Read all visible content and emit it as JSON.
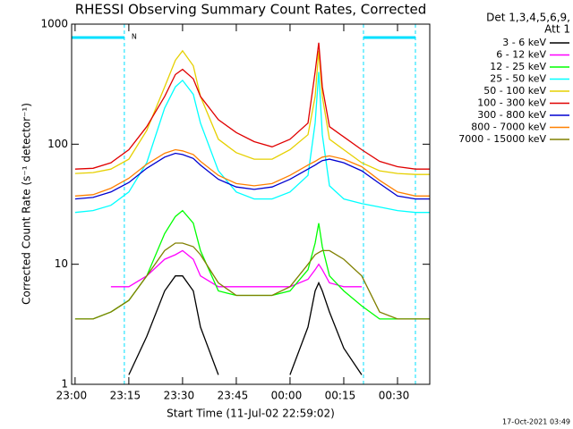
{
  "chart_data": {
    "type": "line",
    "title": "RHESSI Observing Summary Count Rates, Corrected",
    "xlabel": "Start Time (11-Jul-02 22:59:02)",
    "ylabel": "Corrected Count Rate (s⁻¹ detector⁻¹)",
    "legend_title": [
      "Det 1,3,4,5,6,9,",
      "Att 1"
    ],
    "footer": "17-Oct-2021 03:49",
    "night_label": "N",
    "night_intervals": [
      [
        "22:59:02",
        "23:13:45"
      ],
      [
        "00:20:30",
        "00:35:00"
      ]
    ],
    "night_color": "#00e0ff",
    "log_y": true,
    "xlim": [
      "22:59:02",
      "00:39:00"
    ],
    "xticks": [
      "23:00",
      "23:15",
      "23:30",
      "23:45",
      "00:00",
      "00:15",
      "00:30"
    ],
    "ylim": [
      1,
      1000
    ],
    "yticks": [
      1,
      10,
      100,
      1000
    ],
    "x": [
      "23:00",
      "23:05",
      "23:10",
      "23:15",
      "23:20",
      "23:25",
      "23:28",
      "23:30",
      "23:33",
      "23:35",
      "23:40",
      "23:45",
      "23:50",
      "23:55",
      "00:00",
      "00:05",
      "00:07",
      "00:08",
      "00:09",
      "00:11",
      "00:15",
      "00:20",
      "00:25",
      "00:30",
      "00:35",
      "00:39"
    ],
    "series": [
      {
        "name": "3 - 6 keV",
        "color": "#000000",
        "values": [
          null,
          null,
          null,
          1.2,
          2.5,
          6,
          8,
          8,
          6,
          3,
          1.2,
          null,
          null,
          null,
          1.2,
          3,
          6,
          7,
          6,
          4,
          2,
          1.2,
          null,
          null,
          null,
          null
        ]
      },
      {
        "name": "6 - 12 keV",
        "color": "#ff00ff",
        "values": [
          null,
          null,
          6.5,
          6.5,
          8,
          11,
          12,
          13,
          11,
          8,
          6.5,
          6.5,
          6.5,
          6.5,
          6.5,
          7.5,
          9,
          10,
          9,
          7,
          6.5,
          6.5,
          null,
          null,
          null,
          null
        ]
      },
      {
        "name": "12 - 25 keV",
        "color": "#00ff00",
        "values": [
          3.5,
          3.5,
          4,
          5,
          8,
          18,
          25,
          28,
          22,
          13,
          6,
          5.5,
          5.5,
          5.5,
          6,
          9,
          15,
          22,
          14,
          8,
          6,
          4.5,
          3.5,
          3.5,
          3.5,
          3.5
        ]
      },
      {
        "name": "25 - 50 keV",
        "color": "#00ffff",
        "values": [
          27,
          28,
          31,
          40,
          70,
          200,
          300,
          340,
          260,
          150,
          60,
          40,
          35,
          35,
          40,
          55,
          150,
          400,
          120,
          45,
          35,
          32,
          30,
          28,
          27,
          27
        ]
      },
      {
        "name": "50 - 100 keV",
        "color": "#e6d000",
        "values": [
          57,
          58,
          62,
          75,
          130,
          300,
          500,
          600,
          450,
          250,
          110,
          85,
          75,
          75,
          90,
          120,
          250,
          600,
          250,
          110,
          90,
          70,
          60,
          57,
          56,
          56
        ]
      },
      {
        "name": "100 - 300 keV",
        "color": "#e00000",
        "values": [
          62,
          63,
          70,
          90,
          140,
          250,
          380,
          420,
          350,
          250,
          160,
          125,
          105,
          95,
          110,
          150,
          400,
          700,
          300,
          140,
          115,
          90,
          72,
          65,
          62,
          62
        ]
      },
      {
        "name": "300 - 800 keV",
        "color": "#0000d0",
        "values": [
          35,
          36,
          40,
          48,
          63,
          78,
          84,
          82,
          76,
          67,
          51,
          44,
          42,
          44,
          51,
          62,
          67,
          70,
          73,
          75,
          70,
          60,
          47,
          37,
          35,
          35
        ]
      },
      {
        "name": "800 - 7000 keV",
        "color": "#ff8000",
        "values": [
          37,
          38,
          43,
          52,
          68,
          84,
          90,
          88,
          82,
          72,
          55,
          47,
          45,
          47,
          55,
          67,
          72,
          75,
          78,
          80,
          75,
          65,
          50,
          40,
          37,
          37
        ]
      },
      {
        "name": "7000 - 15000 keV",
        "color": "#808000",
        "values": [
          3.5,
          3.5,
          4,
          5,
          8,
          13,
          15,
          15,
          14,
          12,
          7,
          5.5,
          5.5,
          5.5,
          6.5,
          10,
          12,
          12.5,
          13,
          13,
          11,
          8,
          4,
          3.5,
          3.5,
          3.5
        ]
      }
    ]
  }
}
